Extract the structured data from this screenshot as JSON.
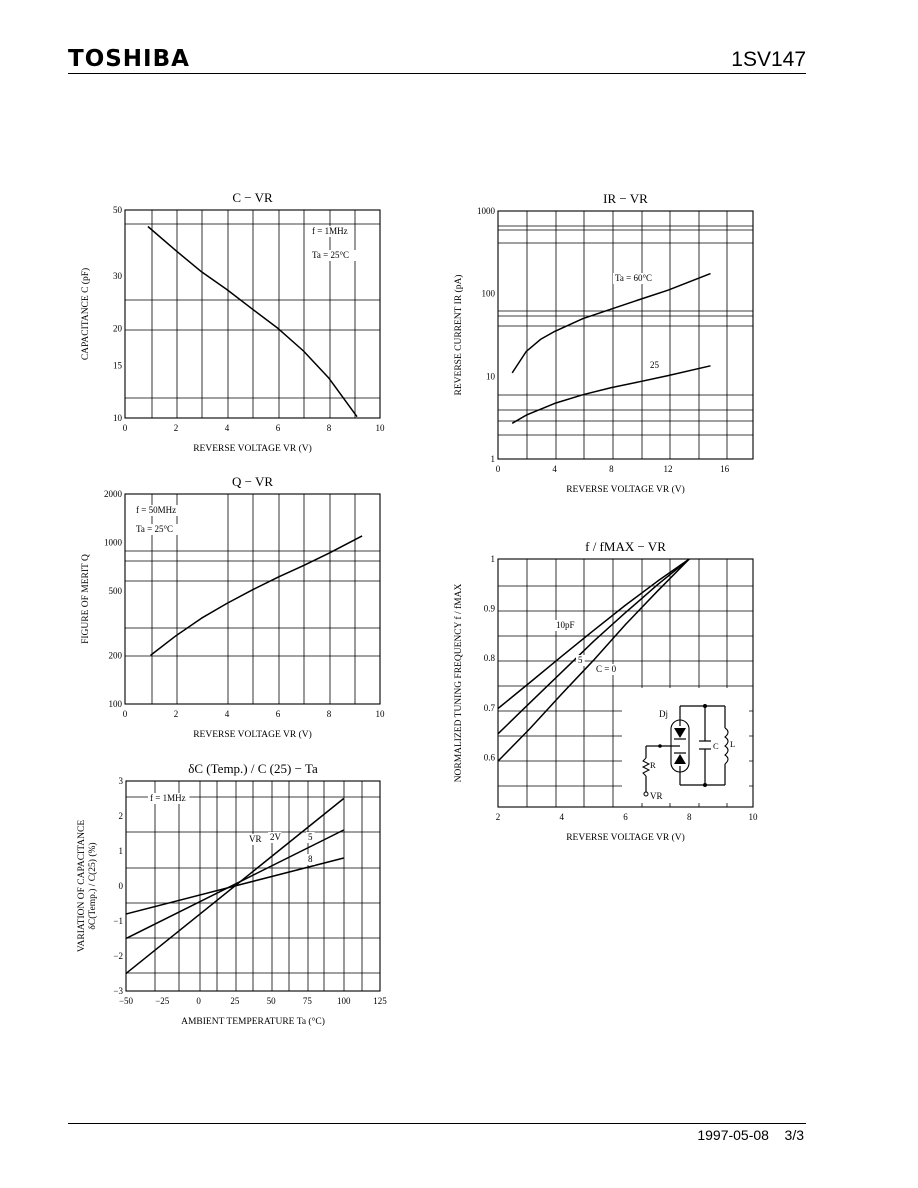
{
  "header": {
    "brand": "TOSHIBA",
    "part_number": "1SV147"
  },
  "footer": {
    "date": "1997-05-08",
    "page": "3/3"
  },
  "chart_data": [
    {
      "id": "c-vr",
      "type": "line",
      "scale": "log-y",
      "title": "C − VR",
      "xlabel": "REVERSE VOLTAGE   VR   (V)",
      "ylabel": "CAPACITANCE   C   (pF)",
      "xlim": [
        0,
        10
      ],
      "ylim": [
        10,
        50
      ],
      "xticks": [
        0,
        2,
        4,
        6,
        8,
        10
      ],
      "yticks": [
        10,
        15,
        20,
        30,
        50
      ],
      "annotations": [
        "f = 1MHz",
        "Ta = 25°C"
      ],
      "series": [
        {
          "x": [
            0.9,
            2,
            3,
            4,
            5,
            6,
            7,
            8,
            9.1
          ],
          "y": [
            44,
            36.5,
            31,
            27,
            23.2,
            20,
            16.8,
            13.6,
            10.1
          ]
        }
      ]
    },
    {
      "id": "ir-vr",
      "type": "line",
      "scale": "log-y",
      "title": "IR − VR",
      "xlabel": "REVERSE VOLTAGE   VR   (V)",
      "ylabel": "REVERSE CURRENT   IR   (pA)",
      "xlim": [
        0,
        18
      ],
      "ylim": [
        1,
        1000
      ],
      "xticks": [
        0,
        4,
        8,
        12,
        16
      ],
      "yticks": [
        1,
        10,
        100,
        1000
      ],
      "annotations": [
        "Ta = 60°C",
        "25"
      ],
      "series": [
        {
          "name": "Ta = 60°C",
          "x": [
            1,
            2,
            3,
            4,
            6,
            8,
            10,
            12,
            15
          ],
          "y": [
            11,
            20,
            28,
            35,
            50,
            65,
            85,
            110,
            175
          ]
        },
        {
          "name": "25",
          "x": [
            1,
            2,
            4,
            6,
            8,
            10,
            12,
            15
          ],
          "y": [
            2.7,
            3.4,
            4.7,
            6,
            7.3,
            8.6,
            10.2,
            13.4
          ]
        }
      ]
    },
    {
      "id": "q-vr",
      "type": "line",
      "scale": "log-y",
      "title": "Q − VR",
      "xlabel": "REVERSE VOLTAGE   VR   (V)",
      "ylabel": "FIGURE OF MERIT   Q",
      "xlim": [
        0,
        10
      ],
      "ylim": [
        100,
        2000
      ],
      "xticks": [
        0,
        2,
        4,
        6,
        8,
        10
      ],
      "yticks": [
        100,
        200,
        500,
        1000,
        2000
      ],
      "annotations": [
        "f = 50MHz",
        "Ta = 25°C"
      ],
      "series": [
        {
          "x": [
            1,
            2,
            3,
            4,
            5,
            6,
            7,
            8,
            9.3
          ],
          "y": [
            200,
            265,
            340,
            420,
            510,
            610,
            720,
            860,
            1100
          ]
        }
      ]
    },
    {
      "id": "f-vr",
      "type": "line",
      "title": "f / fMAX − VR",
      "xlabel": "REVERSE VOLTAGE   VR   (V)",
      "ylabel": "NORMALIZED TUNING FREQUENCY   f / fMAX",
      "xlim": [
        2,
        10
      ],
      "ylim": [
        0.5,
        1.0
      ],
      "xticks": [
        2,
        4,
        6,
        8,
        10
      ],
      "yticks": [
        0.6,
        0.7,
        0.8,
        0.9,
        1.0
      ],
      "annotations": [
        "10pF",
        "5",
        "C = 0"
      ],
      "circuit_labels": {
        "diode": "Dj",
        "resistor": "R",
        "capacitor": "C",
        "inductor": "L",
        "bias": "VR"
      },
      "series": [
        {
          "name": "10pF",
          "x": [
            2,
            3,
            4,
            5,
            6,
            7,
            8
          ],
          "y": [
            0.6985,
            0.751,
            0.804,
            0.856,
            0.907,
            0.955,
            1.0
          ]
        },
        {
          "name": "5",
          "x": [
            2,
            3,
            4,
            5,
            6,
            7,
            8
          ],
          "y": [
            0.6475,
            0.71,
            0.772,
            0.834,
            0.892,
            0.948,
            1.0
          ]
        },
        {
          "name": "C = 0",
          "x": [
            2,
            3,
            4,
            5,
            6,
            7,
            8
          ],
          "y": [
            0.5925,
            0.658,
            0.728,
            0.796,
            0.868,
            0.935,
            1.0
          ]
        }
      ]
    },
    {
      "id": "dc-ta",
      "type": "line",
      "title": "δC (Temp.) / C (25)  −  Ta",
      "xlabel": "AMBIENT TEMPERATURE   Ta   (°C)",
      "ylabel": "VARIATION OF CAPACITANCE",
      "ylabel2": "δC(Temp.) / C(25)   (%)",
      "xlim": [
        -50,
        125
      ],
      "ylim": [
        -3,
        3
      ],
      "xticks": [
        -50,
        -25,
        0,
        25,
        50,
        75,
        100,
        125
      ],
      "xtick_labels": [
        "−50",
        "−25",
        "0",
        "25",
        "50",
        "75",
        "100",
        "125"
      ],
      "yticks": [
        -3,
        -2,
        -1,
        0,
        1,
        2,
        3
      ],
      "ytick_labels": [
        "−3",
        "−2",
        "−1",
        "0",
        "1",
        "2",
        "3"
      ],
      "annotations": [
        "f = 1MHz",
        "VR",
        "2V",
        "5",
        "8"
      ],
      "series": [
        {
          "name": "2V",
          "x": [
            -50,
            100
          ],
          "y": [
            -2.5,
            2.5
          ]
        },
        {
          "name": "5",
          "x": [
            -50,
            100
          ],
          "y": [
            -1.5,
            1.6
          ]
        },
        {
          "name": "8",
          "x": [
            -50,
            100
          ],
          "y": [
            -0.8,
            0.8
          ]
        }
      ]
    }
  ]
}
